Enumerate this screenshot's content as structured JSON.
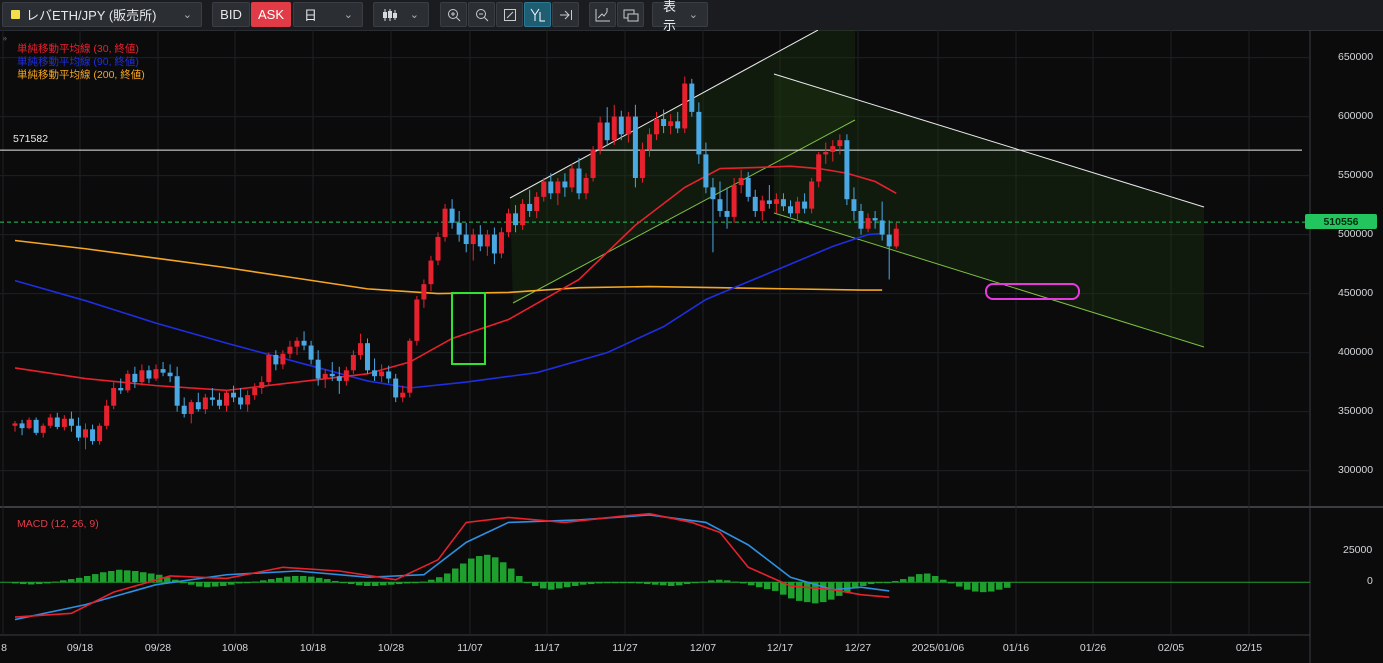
{
  "toolbar": {
    "symbol_label": "レバETH/JPY (販売所)",
    "bid_label": "BID",
    "ask_label": "ASK",
    "period_label": "日",
    "display_label": "表示",
    "icons": [
      "zoom-in-icon",
      "zoom-out-icon",
      "fit-icon",
      "cursor-icon",
      "scroll-to-end-icon",
      "add-indicator-icon",
      "screenshot-icon"
    ]
  },
  "legend": [
    {
      "text": "単純移動平均線 (30, 終値)",
      "color": "#e8212e"
    },
    {
      "text": "単純移動平均線 (90, 終値)",
      "color": "#1f2ee0"
    },
    {
      "text": "単純移動平均線 (200, 終値)",
      "color": "#f5a623"
    }
  ],
  "horizontal_line_label": "571582",
  "current_price": "510556",
  "macd_label": "MACD (12, 26, 9)",
  "colors": {
    "up": "#e8212e",
    "down": "#4aa8e3",
    "ma30": "#e8212e",
    "ma90": "#1f2ee0",
    "ma200": "#f5a623",
    "macd": "#e8212e",
    "signal": "#2f8fe0",
    "hist": "#1fa02e",
    "highlight_box": "#32e232",
    "marker_pill": "#e839e0"
  },
  "chart_data": {
    "type": "candlestick",
    "y_ticks": [
      "650000",
      "600000",
      "550000",
      "500000",
      "450000",
      "400000",
      "350000",
      "300000"
    ],
    "macd_ticks": [
      "25000",
      "0"
    ],
    "x_ticks": [
      "8",
      "09/18",
      "09/28",
      "10/08",
      "10/18",
      "10/28",
      "11/07",
      "11/17",
      "11/27",
      "12/07",
      "12/17",
      "12/27",
      "2025/01/06",
      "01/16",
      "01/26",
      "02/05",
      "02/15"
    ],
    "ylim": [
      270000,
      670000
    ],
    "candles": [
      [
        338000,
        342000,
        333000,
        340000
      ],
      [
        340000,
        343000,
        330000,
        336000
      ],
      [
        336000,
        345000,
        335000,
        343000
      ],
      [
        343000,
        345000,
        330000,
        332000
      ],
      [
        332000,
        340000,
        328000,
        338000
      ],
      [
        338000,
        348000,
        336000,
        345000
      ],
      [
        345000,
        349000,
        335000,
        337000
      ],
      [
        337000,
        347000,
        334000,
        344000
      ],
      [
        344000,
        350000,
        333000,
        338000
      ],
      [
        338000,
        345000,
        325000,
        328000
      ],
      [
        328000,
        340000,
        318000,
        335000
      ],
      [
        335000,
        339000,
        322000,
        325000
      ],
      [
        325000,
        340000,
        322000,
        338000
      ],
      [
        338000,
        360000,
        335000,
        355000
      ],
      [
        355000,
        375000,
        352000,
        370000
      ],
      [
        370000,
        378000,
        365000,
        368000
      ],
      [
        368000,
        385000,
        366000,
        382000
      ],
      [
        382000,
        388000,
        370000,
        375000
      ],
      [
        375000,
        390000,
        372000,
        385000
      ],
      [
        385000,
        389000,
        374000,
        378000
      ],
      [
        378000,
        390000,
        376000,
        386000
      ],
      [
        386000,
        392000,
        380000,
        383000
      ],
      [
        383000,
        390000,
        375000,
        380000
      ],
      [
        380000,
        388000,
        350000,
        355000
      ],
      [
        355000,
        362000,
        345000,
        348000
      ],
      [
        348000,
        360000,
        340000,
        358000
      ],
      [
        358000,
        366000,
        350000,
        352000
      ],
      [
        352000,
        365000,
        348000,
        362000
      ],
      [
        362000,
        370000,
        355000,
        360000
      ],
      [
        360000,
        366000,
        352000,
        355000
      ],
      [
        355000,
        368000,
        350000,
        366000
      ],
      [
        366000,
        372000,
        358000,
        362000
      ],
      [
        362000,
        370000,
        352000,
        356000
      ],
      [
        356000,
        368000,
        350000,
        364000
      ],
      [
        364000,
        374000,
        360000,
        370000
      ],
      [
        370000,
        380000,
        365000,
        375000
      ],
      [
        375000,
        400000,
        372000,
        398000
      ],
      [
        398000,
        402000,
        385000,
        390000
      ],
      [
        390000,
        402000,
        386000,
        399000
      ],
      [
        399000,
        410000,
        395000,
        405000
      ],
      [
        405000,
        413000,
        398000,
        410000
      ],
      [
        410000,
        418000,
        402000,
        406000
      ],
      [
        406000,
        410000,
        390000,
        394000
      ],
      [
        394000,
        402000,
        372000,
        378000
      ],
      [
        378000,
        386000,
        370000,
        382000
      ],
      [
        382000,
        392000,
        376000,
        380000
      ],
      [
        380000,
        388000,
        365000,
        376000
      ],
      [
        376000,
        388000,
        372000,
        385000
      ],
      [
        385000,
        402000,
        382000,
        398000
      ],
      [
        398000,
        416000,
        394000,
        408000
      ],
      [
        408000,
        412000,
        382000,
        385000
      ],
      [
        385000,
        395000,
        376000,
        380000
      ],
      [
        380000,
        390000,
        375000,
        384000
      ],
      [
        384000,
        389000,
        374000,
        378000
      ],
      [
        378000,
        382000,
        358000,
        362000
      ],
      [
        362000,
        372000,
        358000,
        366000
      ],
      [
        366000,
        412000,
        362000,
        410000
      ],
      [
        410000,
        448000,
        406000,
        445000
      ],
      [
        445000,
        462000,
        438000,
        458000
      ],
      [
        458000,
        482000,
        452000,
        478000
      ],
      [
        478000,
        502000,
        474000,
        498000
      ],
      [
        498000,
        526000,
        494000,
        522000
      ],
      [
        522000,
        530000,
        505000,
        510000
      ],
      [
        510000,
        520000,
        494000,
        500000
      ],
      [
        500000,
        510000,
        485000,
        492000
      ],
      [
        492000,
        505000,
        478000,
        500000
      ],
      [
        500000,
        508000,
        486000,
        490000
      ],
      [
        490000,
        504000,
        482000,
        500000
      ],
      [
        500000,
        506000,
        475000,
        484000
      ],
      [
        484000,
        506000,
        480000,
        502000
      ],
      [
        502000,
        522000,
        498000,
        518000
      ],
      [
        518000,
        525000,
        502000,
        508000
      ],
      [
        508000,
        530000,
        504000,
        526000
      ],
      [
        526000,
        538000,
        515000,
        520000
      ],
      [
        520000,
        536000,
        514000,
        532000
      ],
      [
        532000,
        548000,
        528000,
        545000
      ],
      [
        545000,
        552000,
        530000,
        535000
      ],
      [
        535000,
        548000,
        525000,
        545000
      ],
      [
        545000,
        552000,
        532000,
        540000
      ],
      [
        540000,
        560000,
        536000,
        556000
      ],
      [
        556000,
        565000,
        530000,
        535000
      ],
      [
        535000,
        552000,
        530000,
        548000
      ],
      [
        548000,
        575000,
        545000,
        572000
      ],
      [
        572000,
        600000,
        568000,
        595000
      ],
      [
        595000,
        608000,
        575000,
        580000
      ],
      [
        580000,
        610000,
        576000,
        600000
      ],
      [
        600000,
        605000,
        580000,
        585000
      ],
      [
        585000,
        604000,
        578000,
        600000
      ],
      [
        600000,
        610000,
        540000,
        548000
      ],
      [
        548000,
        578000,
        544000,
        572000
      ],
      [
        572000,
        590000,
        566000,
        585000
      ],
      [
        585000,
        604000,
        580000,
        598000
      ],
      [
        598000,
        606000,
        586000,
        592000
      ],
      [
        592000,
        602000,
        585000,
        596000
      ],
      [
        596000,
        604000,
        586000,
        590000
      ],
      [
        590000,
        634000,
        586000,
        628000
      ],
      [
        628000,
        632000,
        600000,
        604000
      ],
      [
        604000,
        612000,
        560000,
        568000
      ],
      [
        568000,
        578000,
        535000,
        540000
      ],
      [
        540000,
        548000,
        485000,
        530000
      ],
      [
        530000,
        545000,
        515000,
        520000
      ],
      [
        520000,
        540000,
        505000,
        515000
      ],
      [
        515000,
        548000,
        510000,
        542000
      ],
      [
        542000,
        555000,
        535000,
        548000
      ],
      [
        548000,
        553000,
        528000,
        532000
      ],
      [
        532000,
        538000,
        515000,
        520000
      ],
      [
        520000,
        533000,
        512000,
        529000
      ],
      [
        529000,
        542000,
        522000,
        526000
      ],
      [
        526000,
        535000,
        518000,
        530000
      ],
      [
        530000,
        535000,
        520000,
        524000
      ],
      [
        524000,
        529000,
        515000,
        518000
      ],
      [
        518000,
        532000,
        513000,
        528000
      ],
      [
        528000,
        535000,
        518000,
        522000
      ],
      [
        522000,
        548000,
        518000,
        545000
      ],
      [
        545000,
        570000,
        540000,
        568000
      ],
      [
        568000,
        578000,
        560000,
        570000
      ],
      [
        570000,
        580000,
        562000,
        575000
      ],
      [
        575000,
        585000,
        568000,
        580000
      ],
      [
        580000,
        585000,
        525000,
        530000
      ],
      [
        530000,
        540000,
        512000,
        520000
      ],
      [
        520000,
        526000,
        500000,
        505000
      ],
      [
        505000,
        518000,
        502000,
        514000
      ],
      [
        514000,
        520000,
        505000,
        512000
      ],
      [
        512000,
        528000,
        495000,
        500000
      ],
      [
        500000,
        512000,
        462000,
        490000
      ],
      [
        490000,
        510000,
        488000,
        505000
      ]
    ],
    "series": [
      {
        "name": "単純移動平均線 (30, 終値)"
      },
      {
        "name": "単純移動平均線 (90, 終値)"
      },
      {
        "name": "単純移動平均線 (200, 終値)"
      }
    ],
    "ma30": [
      [
        0,
        387000
      ],
      [
        10,
        378000
      ],
      [
        20,
        372000
      ],
      [
        30,
        368000
      ],
      [
        40,
        375000
      ],
      [
        50,
        382000
      ],
      [
        56,
        392000
      ],
      [
        62,
        412000
      ],
      [
        70,
        428000
      ],
      [
        80,
        462000
      ],
      [
        88,
        508000
      ],
      [
        95,
        540000
      ],
      [
        100,
        556000
      ],
      [
        106,
        557000
      ],
      [
        110,
        558000
      ],
      [
        114,
        556000
      ],
      [
        118,
        552000
      ],
      [
        122,
        545000
      ],
      [
        125,
        535000
      ]
    ],
    "ma90": [
      [
        0,
        461000
      ],
      [
        10,
        444000
      ],
      [
        20,
        425000
      ],
      [
        30,
        408000
      ],
      [
        40,
        392000
      ],
      [
        50,
        376000
      ],
      [
        56,
        370000
      ],
      [
        64,
        375000
      ],
      [
        74,
        383000
      ],
      [
        84,
        400000
      ],
      [
        92,
        422000
      ],
      [
        98,
        445000
      ],
      [
        104,
        460000
      ],
      [
        110,
        475000
      ],
      [
        116,
        490000
      ],
      [
        121,
        500000
      ],
      [
        123,
        501000
      ]
    ],
    "ma200": [
      [
        0,
        495000
      ],
      [
        10,
        488000
      ],
      [
        20,
        480000
      ],
      [
        30,
        472000
      ],
      [
        40,
        463000
      ],
      [
        50,
        454000
      ],
      [
        60,
        450000
      ],
      [
        70,
        451000
      ],
      [
        80,
        455000
      ],
      [
        90,
        456000
      ],
      [
        100,
        455000
      ],
      [
        110,
        454000
      ],
      [
        120,
        453000
      ],
      [
        123,
        453000
      ]
    ],
    "macd": [
      [
        0,
        -28000
      ],
      [
        8,
        -25000
      ],
      [
        14,
        -8000
      ],
      [
        22,
        5000
      ],
      [
        30,
        3000
      ],
      [
        38,
        12000
      ],
      [
        46,
        9000
      ],
      [
        54,
        2000
      ],
      [
        60,
        18000
      ],
      [
        64,
        48000
      ],
      [
        70,
        52000
      ],
      [
        78,
        48000
      ],
      [
        86,
        53000
      ],
      [
        90,
        55000
      ],
      [
        96,
        48000
      ],
      [
        100,
        40000
      ],
      [
        104,
        12000
      ],
      [
        110,
        -3000
      ],
      [
        116,
        -6000
      ],
      [
        120,
        -10000
      ],
      [
        124,
        -12000
      ]
    ],
    "signal": [
      [
        0,
        -30000
      ],
      [
        10,
        -18000
      ],
      [
        20,
        -2000
      ],
      [
        30,
        6000
      ],
      [
        40,
        9000
      ],
      [
        50,
        4000
      ],
      [
        58,
        6000
      ],
      [
        64,
        32000
      ],
      [
        70,
        48000
      ],
      [
        80,
        50000
      ],
      [
        90,
        54000
      ],
      [
        98,
        48000
      ],
      [
        104,
        30000
      ],
      [
        110,
        4000
      ],
      [
        116,
        -6000
      ],
      [
        120,
        -4000
      ],
      [
        124,
        -7000
      ]
    ],
    "hist": [
      -1000,
      -1500,
      -1800,
      -1500,
      -1000,
      500,
      1500,
      2500,
      3500,
      5000,
      6500,
      8000,
      9000,
      10000,
      9500,
      9000,
      8000,
      7000,
      6000,
      4000,
      2000,
      0,
      -2000,
      -3500,
      -4000,
      -3500,
      -3000,
      -2000,
      -1000,
      -500,
      500,
      1500,
      2500,
      3500,
      4500,
      5000,
      5000,
      4500,
      3500,
      2500,
      1000,
      -500,
      -1500,
      -2500,
      -3000,
      -3000,
      -2500,
      -2000,
      -1500,
      -1000,
      -500,
      500,
      2000,
      4000,
      7000,
      11000,
      15000,
      19000,
      21000,
      22000,
      20000,
      16000,
      11000,
      5000,
      0,
      -3000,
      -5000,
      -6000,
      -5000,
      -4000,
      -3000,
      -2000,
      -1500,
      -1000,
      -500,
      -500,
      -500,
      -500,
      -1000,
      -1500,
      -2000,
      -2500,
      -3000,
      -2500,
      -1500,
      -500,
      500,
      1500,
      2000,
      1500,
      500,
      -1000,
      -2500,
      -4000,
      -5500,
      -7000,
      -10000,
      -13000,
      -15000,
      -16000,
      -17000,
      -16000,
      -14000,
      -11000,
      -8000,
      -5000,
      -3000,
      -1500,
      -500,
      0,
      1000,
      2500,
      4500,
      6500,
      7000,
      5000,
      2000,
      -1000,
      -3500,
      -6000,
      -7500,
      -8000,
      -7500,
      -6000,
      -4500
    ],
    "macd_ylim": [
      -40000,
      58000
    ]
  }
}
